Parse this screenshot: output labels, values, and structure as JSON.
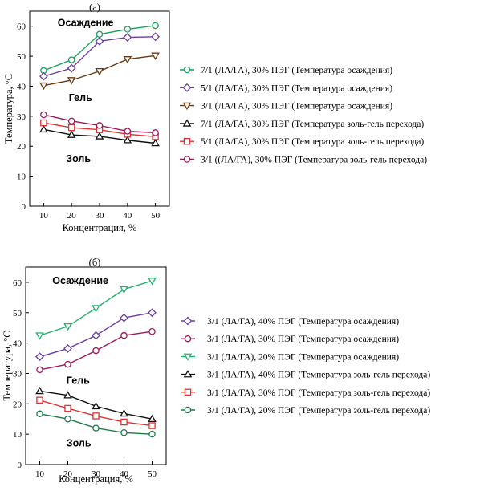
{
  "chart_data": [
    {
      "type": "line",
      "label": "(а)",
      "xlabel": "Концентрация, %",
      "ylabel": "Температура, °C",
      "x": [
        10,
        20,
        30,
        40,
        50
      ],
      "xlim": [
        5,
        55
      ],
      "ylim": [
        0,
        65
      ],
      "xticks": [
        10,
        20,
        30,
        40,
        50
      ],
      "yticks": [
        0,
        10,
        20,
        30,
        40,
        50,
        60
      ],
      "grid": false,
      "legend": "right",
      "annotations": [
        {
          "text": "Осаждение",
          "x": 15,
          "y": 60
        },
        {
          "text": "Гель",
          "x": 19,
          "y": 35
        },
        {
          "text": "Золь",
          "x": 18,
          "y": 14.7
        }
      ],
      "series": [
        {
          "name": "7/1 (ЛА/ГА), 30% ПЭГ (Температура осаждения)",
          "color": "#1aa15a",
          "marker": "circle",
          "values": [
            45.2,
            48.8,
            57.3,
            59.0,
            60.2
          ]
        },
        {
          "name": "5/1 (ЛА/ГА), 30% ПЭГ (Температура осаждения)",
          "color": "#6b3fa0",
          "marker": "diamond",
          "values": [
            43.3,
            46.0,
            55.0,
            56.3,
            56.5
          ]
        },
        {
          "name": "3/1 (ЛА/ГА), 30% ПЭГ (Температура осаждения)",
          "color": "#6b3a12",
          "marker": "triangle-down",
          "values": [
            40.2,
            42.0,
            45.0,
            49.0,
            50.2
          ]
        },
        {
          "name": "7/1 (ЛА/ГА), 30% ПЭГ (Температура золь-гель перехода)",
          "color": "#111111",
          "marker": "triangle-up",
          "values": [
            25.6,
            23.8,
            23.3,
            22.0,
            21.0
          ]
        },
        {
          "name": "5/1 (ЛА/ГА), 30% ПЭГ (Температура золь-гель перехода)",
          "color": "#e03030",
          "marker": "square",
          "values": [
            27.8,
            26.2,
            25.5,
            24.0,
            23.2
          ]
        },
        {
          "name": "3/1 ((ЛА/ГА), 30% ПЭГ (Температура золь-гель перехода)",
          "color": "#a0185a",
          "marker": "circle",
          "values": [
            30.5,
            28.4,
            26.9,
            25.0,
            24.5
          ]
        }
      ]
    },
    {
      "type": "line",
      "label": "(б)",
      "xlabel": "Концентрация, %",
      "ylabel": "Температура, °C",
      "x": [
        10,
        20,
        30,
        40,
        50
      ],
      "xlim": [
        5,
        55
      ],
      "ylim": [
        0,
        65
      ],
      "xticks": [
        10,
        20,
        30,
        40,
        50
      ],
      "yticks": [
        0,
        10,
        20,
        30,
        40,
        50,
        60
      ],
      "grid": false,
      "legend": "right",
      "annotations": [
        {
          "text": "Осаждение",
          "x": 14.5,
          "y": 59.5
        },
        {
          "text": "Гель",
          "x": 19.5,
          "y": 26.5
        },
        {
          "text": "Золь",
          "x": 19.5,
          "y": 6
        }
      ],
      "series": [
        {
          "name": "3/1 (ЛА/ГА), 40% ПЭГ (Температура осаждения)",
          "color": "#6b3fa0",
          "marker": "diamond",
          "values": [
            35.5,
            38.2,
            42.5,
            48.3,
            50.0
          ]
        },
        {
          "name": "3/1 (ЛА/ГА), 30% ПЭГ (Температура осаждения)",
          "color": "#a0185a",
          "marker": "circle",
          "values": [
            31.2,
            33.0,
            37.5,
            42.5,
            43.8
          ]
        },
        {
          "name": "3/1 (ЛА/ГА), 20% ПЭГ (Температура осаждения)",
          "color": "#22b26e",
          "marker": "triangle-down",
          "values": [
            42.5,
            45.5,
            51.5,
            57.7,
            60.5
          ]
        },
        {
          "name": "3/1 (ЛА/ГА), 40% ПЭГ (Температура золь-гель перехода)",
          "color": "#111111",
          "marker": "triangle-up",
          "values": [
            24.2,
            22.8,
            19.2,
            16.8,
            15.0
          ]
        },
        {
          "name": "3/1 (ЛА/ГА), 30% ПЭГ (Температура золь-гель перехода)",
          "color": "#e03030",
          "marker": "square",
          "values": [
            21.2,
            18.5,
            16.0,
            14.0,
            12.8
          ]
        },
        {
          "name": "3/1 (ЛА/ГА), 20% ПЭГ (Температура золь-гель перехода)",
          "color": "#1f7a4a",
          "marker": "circle",
          "values": [
            16.7,
            15.0,
            12.0,
            10.5,
            10.0
          ]
        }
      ]
    }
  ]
}
